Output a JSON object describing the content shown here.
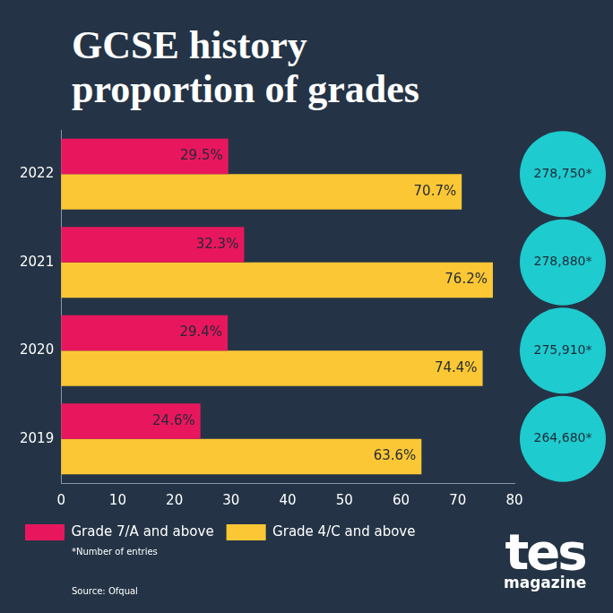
{
  "chart_data": {
    "type": "bar",
    "title": "GCSE history proportion of grades",
    "orientation": "horizontal",
    "categories": [
      "2022",
      "2021",
      "2020",
      "2019"
    ],
    "series": [
      {
        "name": "Grade 7/A and above",
        "color": "#e8175d",
        "values": [
          29.5,
          32.3,
          29.4,
          24.6
        ],
        "value_labels": [
          "29.5%",
          "32.3%",
          "29.4%",
          "24.6%"
        ]
      },
      {
        "name": "Grade 4/C and above",
        "color": "#fcc735",
        "values": [
          70.7,
          76.2,
          74.4,
          63.6
        ],
        "value_labels": [
          "70.7%",
          "76.2%",
          "74.4%",
          "63.6%"
        ]
      }
    ],
    "xlim": [
      0,
      80
    ],
    "xticks": [
      0,
      10,
      20,
      30,
      40,
      50,
      60,
      70,
      80
    ],
    "grid": false,
    "legend": "bottom",
    "data_labels": true,
    "entries": [
      {
        "value": 278750,
        "label": "278,750*"
      },
      {
        "value": 278880,
        "label": "278,880*"
      },
      {
        "value": 275910,
        "label": "275,910*"
      },
      {
        "value": 264680,
        "label": "264,680*"
      }
    ],
    "entries_color": "#1ecbcf",
    "annotations": {
      "footnote": "*Number of entries",
      "source": "Source: Ofqual",
      "logo": "tes",
      "logo_subtitle": "magazine"
    }
  }
}
